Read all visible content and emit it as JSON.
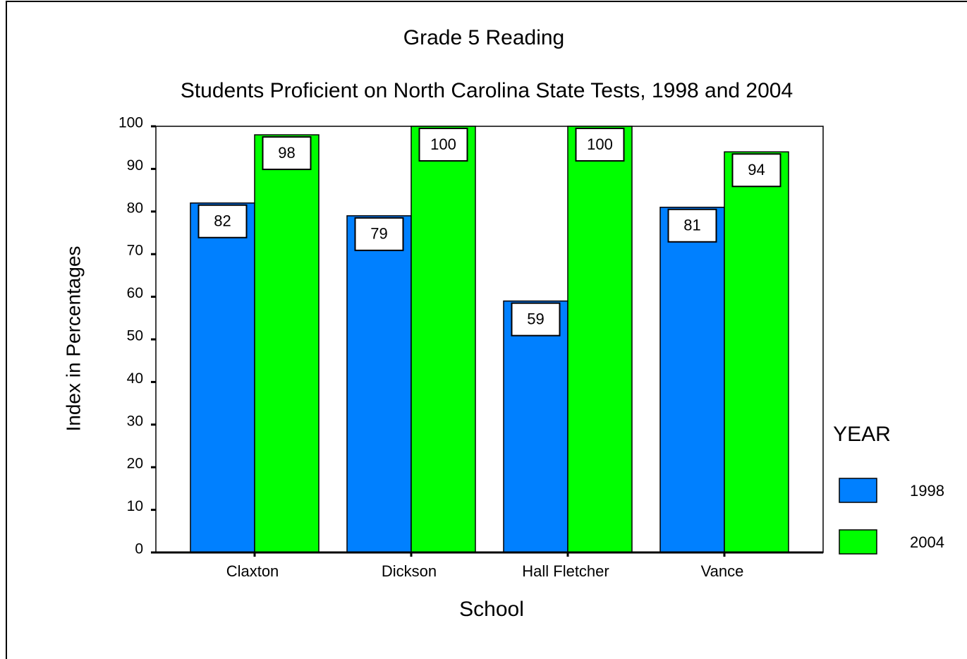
{
  "chart_data": {
    "type": "bar",
    "title": "Grade 5 Reading",
    "subtitle": "Students Proficient on North Carolina State Tests, 1998 and 2004",
    "x_label": "School",
    "y_label": "Index in Percentages",
    "categories": [
      "Claxton",
      "Dickson",
      "Hall Fletcher",
      "Vance"
    ],
    "series": [
      {
        "name": "1998",
        "color": "#0080ff",
        "values": [
          82,
          79,
          59,
          81
        ]
      },
      {
        "name": "2004",
        "color": "#00ff00",
        "values": [
          98,
          100,
          100,
          94
        ]
      }
    ],
    "ylim": [
      0,
      100
    ],
    "yticks": [
      0,
      10,
      20,
      30,
      40,
      50,
      60,
      70,
      80,
      90,
      100
    ],
    "legend_title": "YEAR",
    "legend": "right"
  }
}
